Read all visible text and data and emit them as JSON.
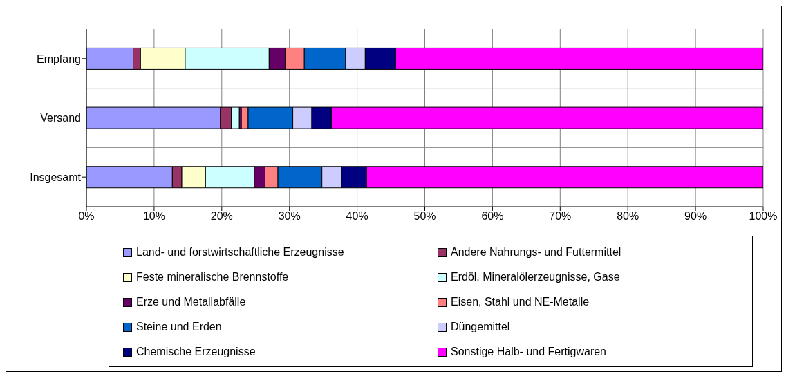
{
  "chart_data": {
    "type": "bar",
    "orientation": "horizontal",
    "stacked": true,
    "categories": [
      "Empfang",
      "Versand",
      "Insgesamt"
    ],
    "series": [
      {
        "name": "Land- und forstwirtschaftliche  Erzeugnisse",
        "color": "#9999ff",
        "values": [
          6.9,
          19.8,
          12.7
        ]
      },
      {
        "name": "Andere Nahrungs- und Futtermittel",
        "color": "#993366",
        "values": [
          1.1,
          1.6,
          1.4
        ]
      },
      {
        "name": "Feste mineralische Brennstoffe",
        "color": "#ffffcc",
        "values": [
          6.6,
          0,
          3.5
        ]
      },
      {
        "name": "Erdöl, Mineralölerzeugnisse, Gase",
        "color": "#ccffff",
        "values": [
          12.4,
          1.2,
          7.2
        ]
      },
      {
        "name": "Erze und Metallabfälle",
        "color": "#660066",
        "values": [
          2.4,
          0.3,
          1.6
        ]
      },
      {
        "name": "Eisen, Stahl und NE-Metalle",
        "color": "#ff8080",
        "values": [
          2.8,
          1.0,
          1.9
        ]
      },
      {
        "name": "Steine und Erden",
        "color": "#0066cc",
        "values": [
          6.1,
          6.6,
          6.5
        ]
      },
      {
        "name": "Düngemittel",
        "color": "#ccccff",
        "values": [
          2.9,
          2.8,
          2.9
        ]
      },
      {
        "name": "Chemische Erzeugnisse",
        "color": "#000080",
        "values": [
          4.5,
          2.9,
          3.7
        ]
      },
      {
        "name": "Sonstige Halb- und Fertigwaren",
        "color": "#ff00ff",
        "values": [
          54.3,
          63.8,
          58.6
        ]
      }
    ],
    "xlim": [
      0,
      100
    ],
    "xticks": [
      {
        "value": 0,
        "label": "0%"
      },
      {
        "value": 10,
        "label": "10%"
      },
      {
        "value": 20,
        "label": "20%"
      },
      {
        "value": 30,
        "label": "30%"
      },
      {
        "value": 40,
        "label": "40%"
      },
      {
        "value": 50,
        "label": "50%"
      },
      {
        "value": 60,
        "label": "60%"
      },
      {
        "value": 70,
        "label": "70%"
      },
      {
        "value": 80,
        "label": "80%"
      },
      {
        "value": 90,
        "label": "90%"
      },
      {
        "value": 100,
        "label": "100%"
      }
    ],
    "grid": true,
    "legend": "bottom"
  }
}
